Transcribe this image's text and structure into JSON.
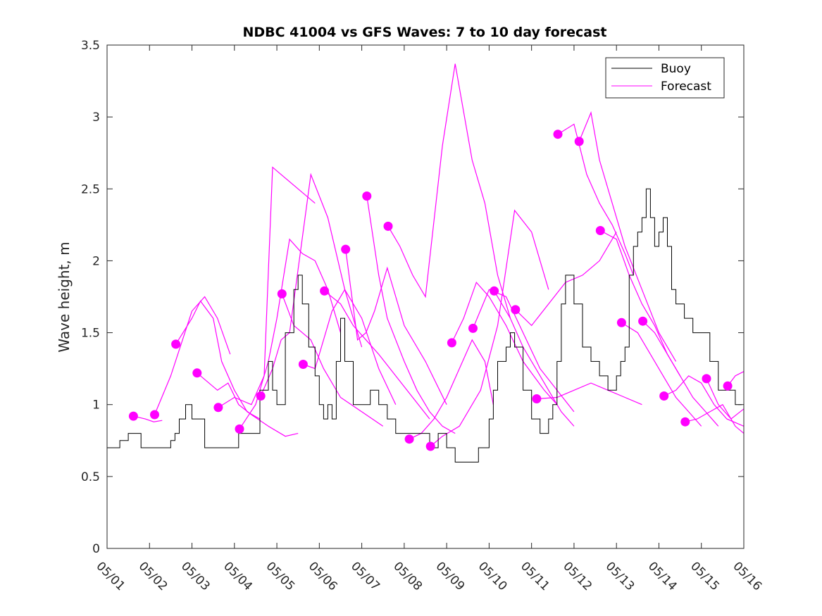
{
  "chart_data": {
    "type": "line",
    "title": "NDBC 41004 vs GFS Waves: 7 to 10 day forecast",
    "xlabel": "",
    "ylabel": "Wave height, m",
    "xlim": [
      0,
      15
    ],
    "ylim": [
      0,
      3.5
    ],
    "x_tick_labels": [
      "05/01",
      "05/02",
      "05/03",
      "05/04",
      "05/05",
      "05/06",
      "05/07",
      "05/08",
      "05/09",
      "05/10",
      "05/11",
      "05/12",
      "05/13",
      "05/14",
      "05/15",
      "05/16"
    ],
    "y_ticks": [
      0,
      0.5,
      1,
      1.5,
      2,
      2.5,
      3,
      3.5
    ],
    "y_tick_labels": [
      "0",
      "0.5",
      "1",
      "1.5",
      "2",
      "2.5",
      "3",
      "3.5"
    ],
    "grid": false,
    "legend": {
      "placement": "top-right",
      "entries": [
        "Buoy",
        "Forecast"
      ]
    },
    "colors": {
      "buoy": "#000000",
      "forecast": "#ff00ff"
    },
    "series": [
      {
        "name": "Buoy",
        "x_units": "days since 05/01",
        "x": [
          0,
          0.3,
          0.5,
          0.8,
          1.2,
          1.5,
          1.6,
          1.7,
          1.85,
          2.0,
          2.3,
          2.5,
          2.6,
          2.75,
          2.9,
          3.0,
          3.1,
          3.2,
          3.3,
          3.4,
          3.6,
          3.8,
          3.9,
          4.0,
          4.2,
          4.4,
          4.5,
          4.6,
          4.75,
          4.9,
          5.0,
          5.1,
          5.2,
          5.3,
          5.4,
          5.5,
          5.6,
          5.8,
          6.0,
          6.2,
          6.4,
          6.6,
          6.8,
          7.0,
          7.2,
          7.4,
          7.6,
          7.8,
          8.0,
          8.2,
          8.4,
          8.6,
          8.75,
          8.9,
          9.0,
          9.1,
          9.2,
          9.4,
          9.5,
          9.6,
          9.8,
          10.0,
          10.2,
          10.4,
          10.5,
          10.6,
          10.7,
          10.8,
          10.9,
          11.0,
          11.2,
          11.4,
          11.6,
          11.8,
          12.0,
          12.1,
          12.2,
          12.3,
          12.4,
          12.5,
          12.6,
          12.7,
          12.8,
          12.9,
          13.0,
          13.1,
          13.2,
          13.3,
          13.4,
          13.6,
          13.8,
          14.0,
          14.2,
          14.4,
          14.6,
          14.8,
          14.95
        ],
        "y": [
          0.7,
          0.75,
          0.8,
          0.7,
          0.7,
          0.75,
          0.8,
          0.9,
          1.0,
          0.9,
          0.7,
          0.7,
          0.7,
          0.7,
          0.7,
          0.7,
          0.8,
          0.8,
          0.8,
          0.8,
          1.1,
          1.3,
          1.1,
          1.0,
          1.5,
          1.8,
          1.9,
          1.7,
          1.4,
          1.2,
          1.0,
          0.9,
          1.0,
          0.9,
          1.3,
          1.6,
          1.3,
          1.0,
          1.0,
          1.1,
          1.0,
          0.9,
          0.8,
          0.8,
          0.8,
          0.8,
          0.7,
          0.8,
          0.7,
          0.6,
          0.6,
          0.6,
          0.7,
          0.7,
          0.9,
          1.1,
          1.3,
          1.4,
          1.5,
          1.4,
          1.1,
          0.9,
          0.8,
          0.9,
          1.0,
          1.3,
          1.7,
          1.9,
          1.9,
          1.7,
          1.4,
          1.3,
          1.2,
          1.1,
          1.2,
          1.3,
          1.4,
          1.9,
          2.1,
          2.2,
          2.3,
          2.5,
          2.3,
          2.1,
          2.2,
          2.3,
          2.1,
          1.8,
          1.7,
          1.6,
          1.5,
          1.5,
          1.3,
          1.1,
          1.1,
          1.0,
          1.0
        ]
      },
      {
        "name": "Forecast",
        "segments": [
          {
            "x": [
              0.62,
              0.9,
              1.1,
              1.3
            ],
            "y": [
              0.92,
              0.9,
              0.88,
              0.89
            ]
          },
          {
            "x": [
              1.12,
              1.5,
              2.0,
              2.3,
              2.6,
              2.9
            ],
            "y": [
              0.93,
              1.2,
              1.65,
              1.75,
              1.6,
              1.35
            ]
          },
          {
            "x": [
              1.62,
              2.0,
              2.2,
              2.5,
              2.7,
              3.0,
              3.3,
              3.6
            ],
            "y": [
              1.42,
              1.6,
              1.72,
              1.6,
              1.3,
              1.1,
              0.95,
              0.9
            ]
          },
          {
            "x": [
              2.12,
              2.6,
              2.85,
              3.1,
              3.4,
              3.8,
              4.2,
              4.5
            ],
            "y": [
              1.22,
              1.1,
              1.15,
              1.0,
              0.93,
              0.85,
              0.78,
              0.8
            ]
          },
          {
            "x": [
              2.62,
              3.0,
              3.4,
              3.7,
              3.9,
              4.1,
              4.5,
              4.9
            ],
            "y": [
              0.98,
              1.05,
              1.0,
              1.2,
              2.65,
              2.6,
              2.5,
              2.4
            ]
          },
          {
            "x": [
              3.12,
              3.5,
              3.8,
              4.0,
              4.3,
              4.6,
              4.9,
              5.2,
              5.5
            ],
            "y": [
              0.83,
              1.0,
              1.3,
              1.6,
              2.15,
              2.05,
              2.0,
              1.8,
              1.5
            ]
          },
          {
            "x": [
              3.62,
              3.9,
              4.1,
              4.3,
              4.8,
              5.2,
              5.6,
              6.0
            ],
            "y": [
              1.06,
              1.25,
              1.45,
              1.5,
              2.6,
              2.3,
              1.8,
              1.4
            ]
          },
          {
            "x": [
              4.12,
              4.4,
              4.8,
              5.1,
              5.5,
              6.0,
              6.5
            ],
            "y": [
              1.77,
              1.55,
              1.45,
              1.25,
              1.05,
              0.95,
              0.85
            ]
          },
          {
            "x": [
              4.62,
              4.9,
              5.3,
              5.6,
              6.0,
              6.4,
              6.8
            ],
            "y": [
              1.28,
              1.25,
              1.65,
              1.8,
              1.6,
              1.25,
              1.0
            ]
          },
          {
            "x": [
              5.12,
              5.5,
              5.8,
              6.1,
              6.4,
              6.8,
              7.2,
              7.6
            ],
            "y": [
              1.79,
              1.7,
              1.55,
              1.45,
              1.35,
              1.2,
              1.05,
              0.9
            ]
          },
          {
            "x": [
              5.62,
              5.9,
              6.1,
              6.3,
              6.6,
              7.0,
              7.5,
              8.0
            ],
            "y": [
              2.08,
              1.45,
              1.5,
              1.65,
              1.95,
              1.55,
              1.3,
              1.0
            ]
          },
          {
            "x": [
              6.12,
              6.4,
              6.6,
              7.0,
              7.3,
              7.6,
              7.9,
              8.2
            ],
            "y": [
              2.45,
              1.9,
              1.6,
              1.3,
              1.1,
              0.95,
              0.85,
              0.8
            ]
          },
          {
            "x": [
              6.62,
              6.9,
              7.2,
              7.5,
              7.9,
              8.2,
              8.6,
              8.9,
              9.2,
              9.5
            ],
            "y": [
              2.24,
              2.1,
              1.9,
              1.75,
              2.8,
              3.37,
              2.7,
              2.4,
              1.9,
              1.6
            ]
          },
          {
            "x": [
              7.12,
              7.4,
              7.7,
              8.0,
              8.3,
              8.6,
              8.9,
              9.1
            ],
            "y": [
              0.76,
              0.8,
              0.9,
              1.05,
              1.25,
              1.45,
              1.3,
              1.0
            ]
          },
          {
            "x": [
              7.62,
              7.9,
              8.3,
              8.8,
              9.2,
              9.6,
              10.0,
              10.4
            ],
            "y": [
              0.71,
              0.78,
              0.85,
              1.1,
              1.55,
              2.35,
              2.2,
              1.8
            ]
          },
          {
            "x": [
              8.12,
              8.4,
              8.7,
              9.0,
              9.4,
              9.8,
              10.3,
              10.6
            ],
            "y": [
              1.43,
              1.6,
              1.85,
              1.75,
              1.55,
              1.3,
              1.1,
              1.0
            ]
          },
          {
            "x": [
              8.62,
              9.0,
              9.4,
              9.8,
              10.2,
              10.6,
              11.0
            ],
            "y": [
              1.53,
              1.8,
              1.75,
              1.5,
              1.25,
              1.1,
              0.95
            ]
          },
          {
            "x": [
              9.12,
              9.5,
              9.8,
              10.1,
              10.4,
              10.7,
              11.0
            ],
            "y": [
              1.79,
              1.6,
              1.4,
              1.25,
              1.1,
              0.95,
              0.85
            ]
          },
          {
            "x": [
              9.62,
              10.0,
              10.4,
              10.8,
              11.2,
              11.6,
              12.0
            ],
            "y": [
              1.66,
              1.55,
              1.7,
              1.85,
              1.9,
              2.0,
              2.2
            ]
          },
          {
            "x": [
              10.12,
              10.6,
              11.0,
              11.4,
              11.8,
              12.2,
              12.6
            ],
            "y": [
              1.04,
              1.05,
              1.1,
              1.15,
              1.1,
              1.05,
              1.0
            ]
          },
          {
            "x": [
              10.62,
              11.0,
              11.3,
              11.6,
              11.9,
              12.2,
              12.4
            ],
            "y": [
              2.88,
              2.95,
              2.6,
              2.4,
              2.25,
              2.05,
              1.9
            ]
          },
          {
            "x": [
              11.12,
              11.4,
              11.6,
              11.9,
              12.2,
              12.6,
              13.0,
              13.4
            ],
            "y": [
              2.83,
              3.03,
              2.7,
              2.4,
              2.1,
              1.8,
              1.5,
              1.3
            ]
          },
          {
            "x": [
              11.62,
              12.0,
              12.3,
              12.6,
              12.9,
              13.2,
              13.5
            ],
            "y": [
              2.21,
              2.15,
              1.9,
              1.7,
              1.55,
              1.35,
              1.2
            ]
          },
          {
            "x": [
              12.12,
              12.5,
              12.8,
              13.1,
              13.4,
              13.7,
              14.0
            ],
            "y": [
              1.57,
              1.5,
              1.35,
              1.2,
              1.05,
              0.95,
              0.85
            ]
          },
          {
            "x": [
              12.62,
              12.9,
              13.2,
              13.5,
              13.8,
              14.1,
              14.4
            ],
            "y": [
              1.58,
              1.5,
              1.35,
              1.2,
              1.05,
              0.95,
              0.85
            ]
          },
          {
            "x": [
              13.12,
              13.4,
              13.7,
              14.0,
              14.3,
              14.6,
              15.0
            ],
            "y": [
              1.06,
              1.1,
              1.2,
              1.15,
              1.0,
              0.9,
              0.85
            ]
          },
          {
            "x": [
              13.62,
              13.9,
              14.2,
              14.5,
              14.8,
              15.0
            ],
            "y": [
              0.88,
              0.9,
              0.95,
              1.0,
              0.85,
              0.8
            ]
          },
          {
            "x": [
              14.12,
              14.4,
              14.7,
              15.0
            ],
            "y": [
              1.18,
              1.0,
              0.9,
              0.97
            ]
          },
          {
            "x": [
              14.62,
              14.8,
              15.0
            ],
            "y": [
              1.13,
              1.2,
              1.23
            ]
          }
        ],
        "initial_points": {
          "x": [
            0.62,
            1.12,
            1.62,
            2.12,
            2.62,
            3.12,
            3.62,
            4.12,
            4.62,
            5.12,
            5.62,
            6.12,
            6.62,
            7.12,
            7.62,
            8.12,
            8.62,
            9.12,
            9.62,
            10.12,
            10.62,
            11.12,
            11.62,
            12.12,
            12.62,
            13.12,
            13.62,
            14.12,
            14.62
          ],
          "y": [
            0.92,
            0.93,
            1.42,
            1.22,
            0.98,
            0.83,
            1.06,
            1.77,
            1.28,
            1.79,
            2.08,
            2.45,
            2.24,
            0.76,
            0.71,
            1.43,
            1.53,
            1.79,
            1.66,
            1.04,
            2.88,
            2.83,
            2.21,
            1.57,
            1.58,
            1.06,
            0.88,
            1.18,
            1.13
          ]
        }
      }
    ]
  }
}
